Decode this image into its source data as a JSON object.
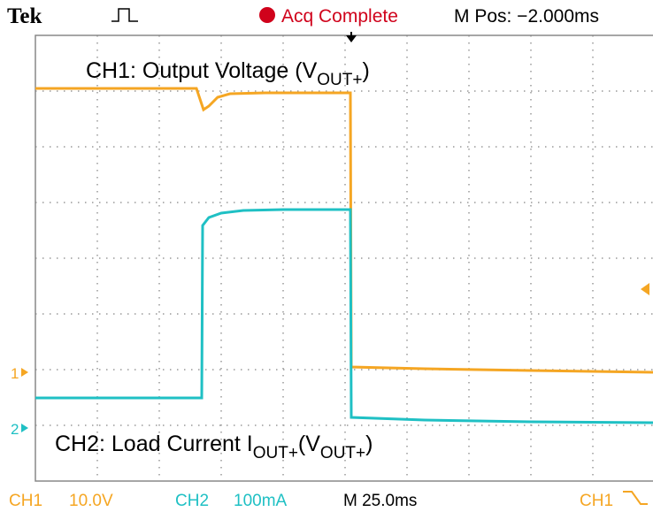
{
  "header": {
    "brand": "Tek",
    "status": "Acq Complete",
    "position": "M Pos: −2.000ms"
  },
  "annotations": {
    "ch1": {
      "text": "CH1: Output Voltage (V",
      "sub": "OUT+",
      "end": ")"
    },
    "ch2": {
      "text": "CH2: Load Current I",
      "sub": "OUT+",
      "mid": "(V",
      "sub2": "OUT+",
      "end": ")"
    }
  },
  "markers": {
    "ch1": "1",
    "ch2": "2"
  },
  "footer": {
    "ch1": "CH1",
    "ch1_scale": "10.0V",
    "ch2": "CH2",
    "ch2_scale": "100mA",
    "timebase": "M 25.0ms",
    "trigger_source": "CH1"
  }
}
